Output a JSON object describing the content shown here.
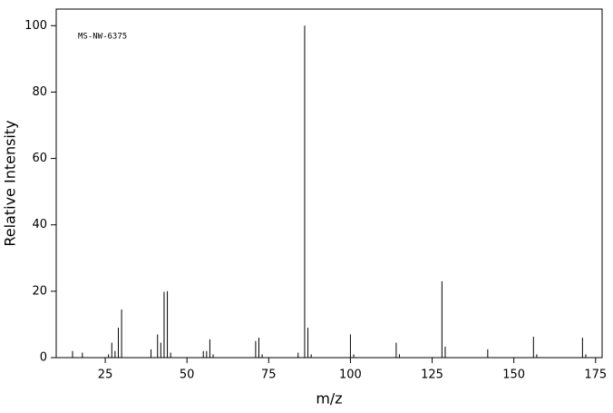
{
  "chart_data": {
    "type": "bar",
    "annotation": "MS-NW-6375",
    "x_label": "m/z",
    "y_label": "Relative Intensity",
    "x": [
      15,
      18,
      26,
      27,
      28,
      29,
      30,
      39,
      41,
      42,
      43,
      44,
      45,
      55,
      56,
      57,
      58,
      71,
      72,
      73,
      84,
      86,
      87,
      88,
      100,
      101,
      114,
      115,
      128,
      129,
      142,
      156,
      157,
      171,
      172
    ],
    "values": [
      2,
      1.5,
      1,
      4.5,
      2,
      9,
      14.5,
      2.5,
      7,
      4.5,
      19.8,
      20,
      1.5,
      2,
      2,
      5.5,
      1,
      5,
      6,
      1,
      1.5,
      100,
      9,
      1,
      7,
      1,
      4.5,
      1,
      23,
      3.3,
      2.5,
      6.3,
      1,
      6,
      1
    ],
    "color": "#000000",
    "xlim": [
      10,
      177
    ],
    "ylim": [
      0,
      105
    ],
    "xticks": [
      25,
      50,
      75,
      100,
      125,
      150,
      175
    ],
    "yticks": [
      0,
      20,
      40,
      60,
      80,
      100
    ]
  }
}
